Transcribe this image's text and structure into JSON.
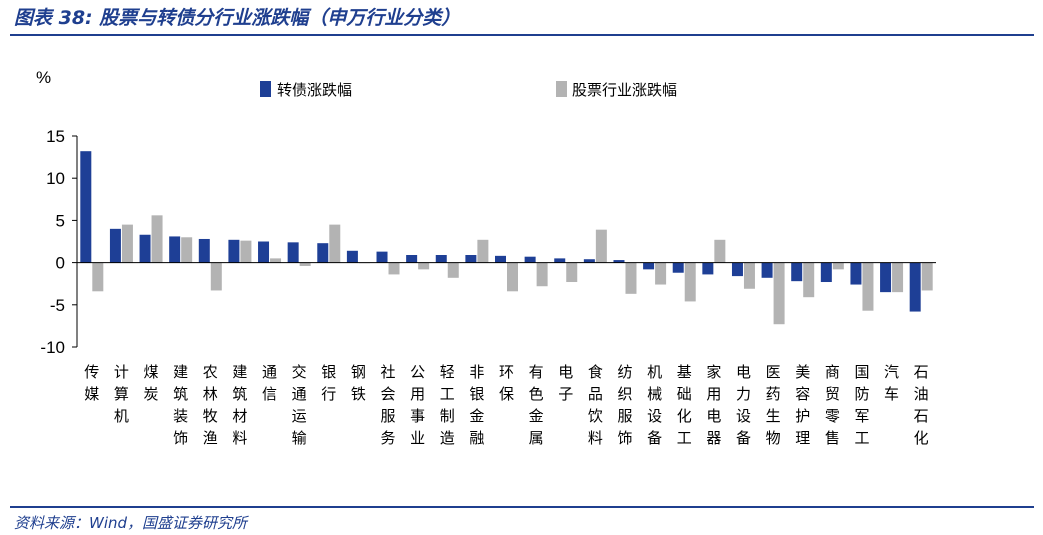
{
  "header": {
    "title": "图表 38:  股票与转债分行业涨跌幅（申万行业分类）"
  },
  "footer": {
    "source": "资料来源：Wind，国盛证券研究所"
  },
  "colors": {
    "bond": "#1e3f96",
    "stock": "#b3b3b3",
    "brand": "#1f3f8f"
  },
  "chart_data": {
    "type": "bar",
    "ylabel": "%",
    "ylim": [
      -10,
      15
    ],
    "yticks": [
      "15",
      "10",
      "5",
      "0",
      "-5",
      "-10"
    ],
    "legend_position": "top",
    "categories": [
      "传媒",
      "计算机",
      "煤炭",
      "建筑装饰",
      "农林牧渔",
      "建筑材料",
      "通信",
      "交通运输",
      "银行",
      "钢铁",
      "社会服务",
      "公用事业",
      "轻工制造",
      "非银金融",
      "环保",
      "有色金属",
      "电子",
      "食品饮料",
      "纺织服饰",
      "机械设备",
      "基础化工",
      "家用电器",
      "电力设备",
      "医药生物",
      "美容护理",
      "商贸零售",
      "国防军工",
      "汽车",
      "石油石化"
    ],
    "series": [
      {
        "name": "转债涨跌幅",
        "color": "#1e3f96",
        "values": [
          13.2,
          4.0,
          3.3,
          3.1,
          2.8,
          2.7,
          2.5,
          2.4,
          2.3,
          1.4,
          1.3,
          0.9,
          0.9,
          0.9,
          0.8,
          0.7,
          0.5,
          0.4,
          0.3,
          -0.8,
          -1.2,
          -1.4,
          -1.6,
          -1.8,
          -2.2,
          -2.3,
          -2.6,
          -3.5,
          -5.8
        ]
      },
      {
        "name": "股票行业涨跌幅",
        "color": "#b3b3b3",
        "values": [
          -3.4,
          4.5,
          5.6,
          3.0,
          -3.3,
          2.6,
          0.5,
          -0.4,
          4.5,
          0.0,
          -1.4,
          -0.8,
          -1.8,
          2.7,
          -3.4,
          -2.8,
          -2.3,
          3.9,
          -3.7,
          -2.6,
          -4.6,
          2.7,
          -3.1,
          -7.3,
          -4.1,
          -0.8,
          -5.7,
          -3.5,
          -3.3
        ]
      }
    ]
  }
}
